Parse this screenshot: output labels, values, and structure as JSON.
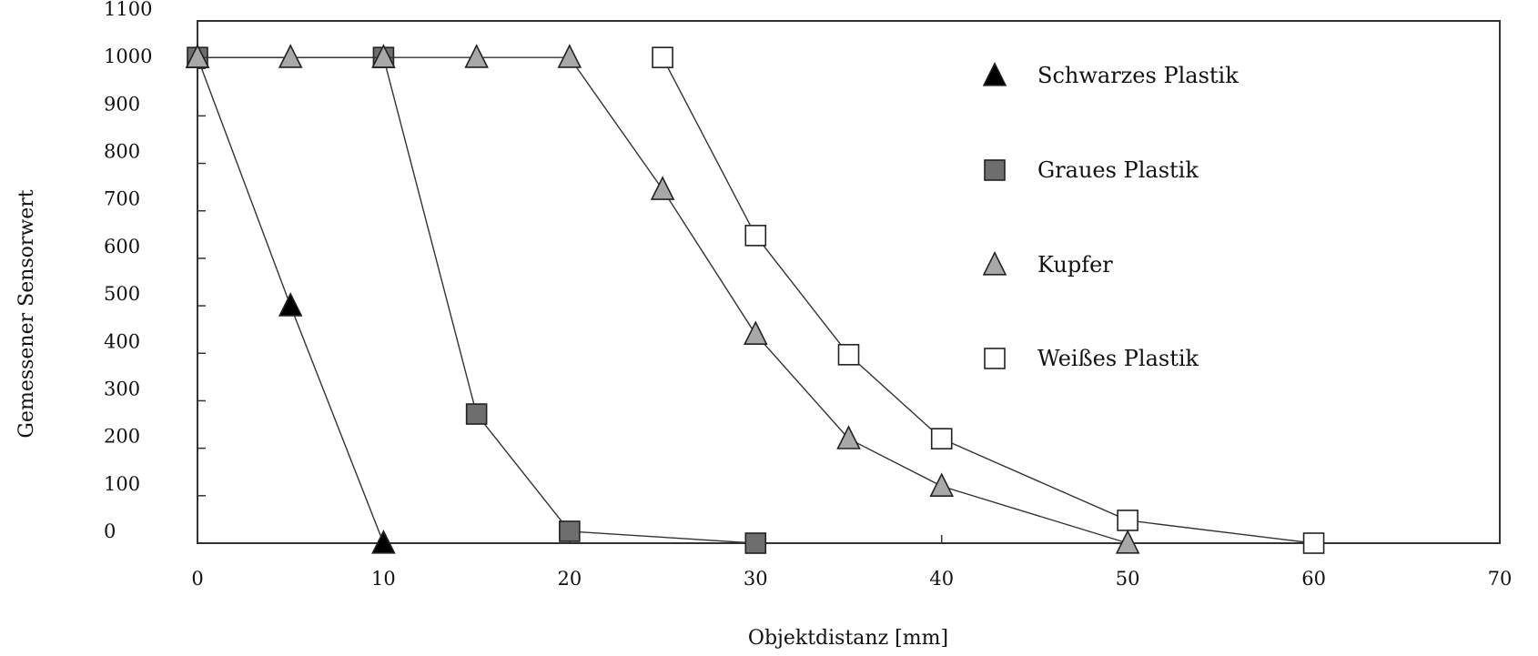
{
  "chart_data": {
    "type": "line",
    "title": "",
    "xlabel": "Objektdistanz [mm]",
    "ylabel": "Gemessener Sensorwert",
    "xlim": [
      0,
      70
    ],
    "ylim": [
      0,
      1100
    ],
    "x_ticks": [
      0,
      10,
      20,
      30,
      40,
      50,
      60,
      70
    ],
    "y_ticks": [
      0,
      100,
      200,
      300,
      400,
      500,
      600,
      700,
      800,
      900,
      1000,
      1100
    ],
    "x_tick_labels": [
      "0",
      "10",
      "20",
      "30",
      "40",
      "50",
      "60",
      "70"
    ],
    "y_tick_labels": [
      "0",
      "100",
      "200",
      "300",
      "400",
      "500",
      "600",
      "700",
      "800",
      "900",
      "1000",
      "1100"
    ],
    "grid": false,
    "legend_position": "top-right",
    "series": [
      {
        "name": "Schwarzes Plastik",
        "marker": "triangle",
        "color": "#000000",
        "points": [
          [
            0,
            1023
          ],
          [
            5,
            500
          ],
          [
            10,
            0
          ]
        ]
      },
      {
        "name": "Graues Plastik",
        "marker": "square",
        "color": "#6e6e6e",
        "points": [
          [
            0,
            1023
          ],
          [
            10,
            1023
          ],
          [
            15,
            272
          ],
          [
            20,
            25
          ],
          [
            30,
            0
          ]
        ]
      },
      {
        "name": "Kupfer",
        "marker": "triangle",
        "color": "#a8a8a8",
        "points": [
          [
            0,
            1023
          ],
          [
            5,
            1023
          ],
          [
            10,
            1023
          ],
          [
            15,
            1023
          ],
          [
            20,
            1023
          ],
          [
            25,
            745
          ],
          [
            30,
            440
          ],
          [
            35,
            220
          ],
          [
            40,
            120
          ],
          [
            50,
            0
          ]
        ]
      },
      {
        "name": "Weißes Plastik",
        "marker": "square",
        "color": "#ffffff",
        "points": [
          [
            25,
            1023
          ],
          [
            30,
            648
          ],
          [
            35,
            397
          ],
          [
            40,
            220
          ],
          [
            50,
            48
          ],
          [
            60,
            0
          ]
        ]
      }
    ]
  }
}
